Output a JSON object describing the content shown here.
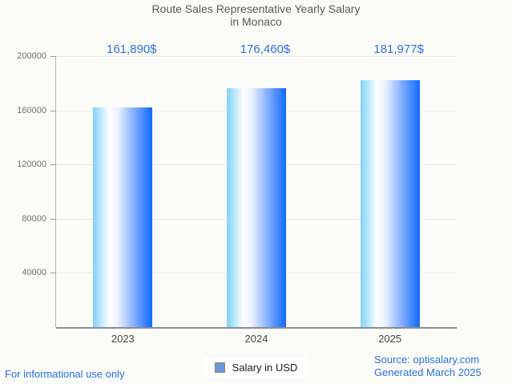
{
  "page": {
    "background": "#fbfbf8",
    "accent_blue": "#2b6fe0",
    "footer_left": "For informational use only",
    "footer_right_line1": "Source: optisalary.com",
    "footer_right_line2": "Generated March 2025"
  },
  "chart_data": {
    "type": "bar",
    "title": "Route Sales Representative Yearly Salary in Monaco",
    "title_lines": [
      "Route Sales Representative Yearly Salary",
      "in Monaco"
    ],
    "categories": [
      "2023",
      "2024",
      "2025"
    ],
    "values": [
      161890,
      176460,
      181977
    ],
    "value_labels": [
      "161,890$",
      "176,460$",
      "181,977$"
    ],
    "series": [
      {
        "name": "Salary in USD",
        "values": [
          161890,
          176460,
          181977
        ]
      }
    ],
    "legend_label": "Salary in USD",
    "legend_position": "bottom",
    "grid": true,
    "ylim": [
      0,
      200000
    ],
    "yticks": [
      40000,
      80000,
      120000,
      160000,
      200000
    ],
    "annotation_color": "#2b6fe0",
    "bar_gradient": [
      "#7fd2f8",
      "#ffffff",
      "#0f6afc"
    ],
    "legend_swatch_color": "#5d9cec"
  }
}
